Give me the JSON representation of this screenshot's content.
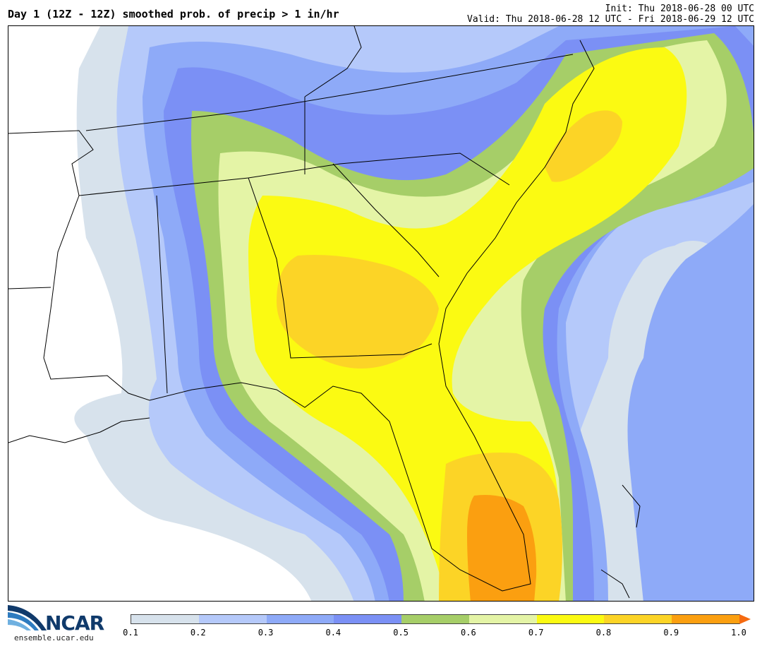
{
  "header": {
    "title": "Day 1 (12Z - 12Z) smoothed prob. of precip > 1 in/hr",
    "init": "Init: Thu 2018-06-28 00 UTC",
    "valid": "Valid: Thu 2018-06-28 12 UTC - Fri 2018-06-29 12 UTC"
  },
  "colorbar": {
    "ticks": [
      "0.1",
      "0.2",
      "0.3",
      "0.4",
      "0.5",
      "0.6",
      "0.7",
      "0.8",
      "0.9",
      "1.0"
    ],
    "colors": [
      "#d7e2ec",
      "#b5c9fa",
      "#8eaaf8",
      "#7b90f5",
      "#a6ce68",
      "#e4f4a6",
      "#fbfa12",
      "#fcd426",
      "#fb9f10"
    ],
    "overflow_color": "#f56a10"
  },
  "logo": {
    "name": "NCAR",
    "url": "ensemble.ucar.edu"
  }
}
